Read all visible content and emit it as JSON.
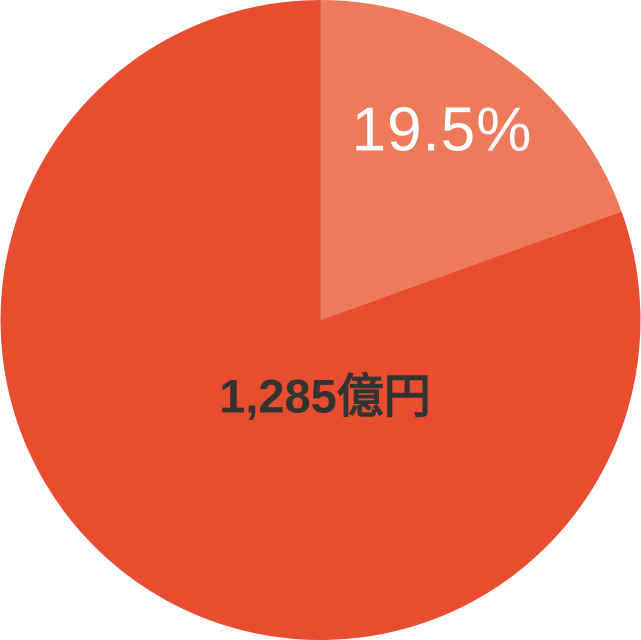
{
  "chart_data": {
    "type": "pie",
    "title": "",
    "direction": "clockwise",
    "start_angle_deg": 0,
    "slices": [
      {
        "name": "highlighted-share",
        "value_percent": 19.5,
        "label": "19.5%",
        "color": "#ED7B5B",
        "label_color": "#FFFFFF"
      },
      {
        "name": "remainder",
        "value_percent": 80.5,
        "label": "",
        "color": "#E94D30",
        "label_color": ""
      }
    ],
    "center_label": "1,285億円",
    "center_label_color": "#333333",
    "legend": "none",
    "background_color": "#FFFFFF"
  }
}
